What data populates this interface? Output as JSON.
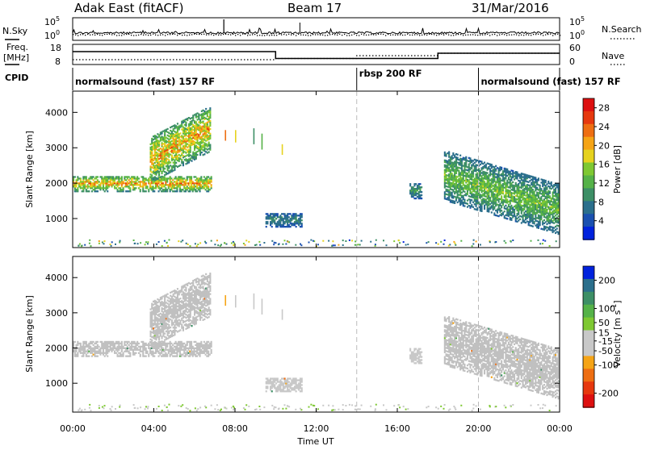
{
  "header": {
    "station": "Adak East (fitACF)",
    "beam": "Beam 17",
    "date": "31/Mar/2016"
  },
  "noise_panel": {
    "left_label": "N.Sky",
    "right_label": "N.Search",
    "left_ticks": [
      "10^5",
      "10^0"
    ],
    "right_ticks": [
      "10^5",
      "10^0"
    ]
  },
  "freq_panel": {
    "left_label": "Freq.",
    "left_unit": "[MHz]",
    "left_ticks": [
      "18",
      "8"
    ],
    "right_label": "Nave",
    "right_ticks": [
      "60",
      "0"
    ]
  },
  "cpid_panel": {
    "label": "CPID",
    "modes": [
      {
        "name": "normalsound (fast) 157 RF",
        "start_hour": 0,
        "end_hour": 14
      },
      {
        "name": "rbsp 200 RF",
        "start_hour": 14,
        "end_hour": 20
      },
      {
        "name": "normalsound (fast) 157 RF",
        "start_hour": 20,
        "end_hour": 24
      }
    ]
  },
  "chart_data": {
    "type": "heatmap",
    "xlabel": "Time UT",
    "x_tick_labels": [
      "00:00",
      "04:00",
      "08:00",
      "12:00",
      "16:00",
      "20:00",
      "00:00"
    ],
    "xlim_hours": [
      0,
      24
    ],
    "mode_boundaries_hours": [
      14,
      20
    ],
    "ylabel": "Slant Range [km]",
    "y_ticks": [
      1000,
      2000,
      3000,
      4000
    ],
    "ylim": [
      180,
      4600
    ],
    "panels": [
      {
        "name": "power",
        "colorbar_label": "Power [dB]",
        "colorbar_ticks": [
          4,
          8,
          12,
          16,
          20,
          24,
          28
        ],
        "colorbar_range": [
          0,
          30
        ],
        "colors": [
          "#0022dd",
          "#1a50b0",
          "#2b6f8c",
          "#3d8f66",
          "#55b248",
          "#7ec832",
          "#e6d21e",
          "#f5a416",
          "#ee6e12",
          "#e6380e",
          "#dd1010"
        ],
        "echo_regions": [
          {
            "t_start": 0.0,
            "t_end": 6.8,
            "range_start_km": 1750,
            "range_end_km": 2200,
            "trend_km_per_hr": 0,
            "peak_db": 22
          },
          {
            "t_start": 3.8,
            "t_end": 6.8,
            "range_start_km": 2000,
            "range_end_km": 3300,
            "trend_km_per_hr": 300,
            "peak_db": 22
          },
          {
            "t_start": 9.5,
            "t_end": 11.3,
            "range_start_km": 750,
            "range_end_km": 1150,
            "trend_km_per_hr": 0,
            "peak_db": 8
          },
          {
            "t_start": 16.6,
            "t_end": 17.2,
            "range_start_km": 1550,
            "range_end_km": 2000,
            "trend_km_per_hr": 0,
            "peak_db": 10
          },
          {
            "t_start": 18.3,
            "t_end": 24.0,
            "range_start_km": 1500,
            "range_end_km": 2900,
            "trend_km_per_hr": -170,
            "peak_db": 14
          }
        ]
      },
      {
        "name": "velocity",
        "colorbar_label": "Velocity [m s^-1]",
        "colorbar_ticks": [
          200,
          100,
          50,
          15,
          -15,
          -50,
          -100,
          -200
        ],
        "colorbar_range": [
          -250,
          250
        ],
        "colors": [
          "#dd1010",
          "#e6380e",
          "#ee6e12",
          "#f5a416",
          "#c8c8c8",
          "#c8c8c8",
          "#7ec832",
          "#55b248",
          "#3d8f66",
          "#2b6f8c",
          "#0022dd"
        ],
        "ground_scatter_color": "#c0c0c0",
        "echo_regions": [
          {
            "t_start": 0.0,
            "t_end": 6.8,
            "range_start_km": 1750,
            "range_end_km": 2200,
            "trend_km_per_hr": 0,
            "velocity_ms": 0
          },
          {
            "t_start": 3.8,
            "t_end": 6.8,
            "range_start_km": 2000,
            "range_end_km": 3300,
            "trend_km_per_hr": 300,
            "velocity_ms": 0
          },
          {
            "t_start": 9.5,
            "t_end": 11.3,
            "range_start_km": 750,
            "range_end_km": 1150,
            "trend_km_per_hr": 0,
            "velocity_ms": 30
          },
          {
            "t_start": 16.6,
            "t_end": 17.2,
            "range_start_km": 1550,
            "range_end_km": 2000,
            "trend_km_per_hr": 0,
            "velocity_ms": 30
          },
          {
            "t_start": 18.3,
            "t_end": 24.0,
            "range_start_km": 1500,
            "range_end_km": 2900,
            "trend_km_per_hr": -170,
            "velocity_ms": 0
          }
        ]
      }
    ]
  }
}
